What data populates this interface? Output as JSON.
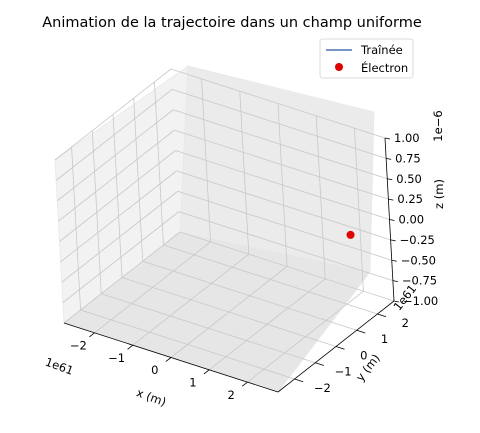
{
  "chart_data": {
    "type": "scatter",
    "projection": "3d",
    "title": "Animation de la trajectoire dans un champ uniforme",
    "xlabel": "x (m)",
    "ylabel": "y (m)",
    "zlabel": "z (m)",
    "x_scale_label": "1e61",
    "y_scale_label": "1e61",
    "z_scale_label": "1e−6",
    "xlim": [
      -2.8,
      2.8
    ],
    "ylim": [
      -2.8,
      2.8
    ],
    "zlim": [
      -1.0,
      1.0
    ],
    "x_ticks": [
      "−2",
      "−1",
      "0",
      "1",
      "2"
    ],
    "y_ticks": [
      "−2",
      "−1",
      "0",
      "1",
      "2"
    ],
    "z_ticks": [
      "1.00",
      "0.75",
      "0.50",
      "0.25",
      "0.00",
      "−0.25",
      "−0.50",
      "−0.75",
      "−1.00"
    ],
    "grid": true,
    "legend": {
      "position": "top-right",
      "entries": [
        {
          "label": "Traînée",
          "marker": "line",
          "color": "#4c72b0"
        },
        {
          "label": "Électron",
          "marker": "dot",
          "color": "#e00000"
        }
      ]
    },
    "series": [
      {
        "name": "Traînée",
        "x": [],
        "y": [],
        "z": []
      },
      {
        "name": "Électron",
        "x": [
          2.2
        ],
        "y": [
          2.0
        ],
        "z": [
          -0.12
        ]
      }
    ]
  }
}
